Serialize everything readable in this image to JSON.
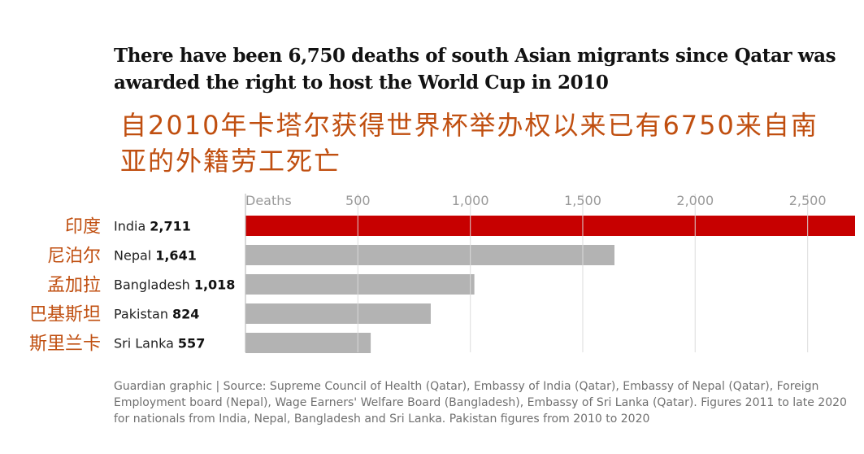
{
  "title": "There have been 6,750 deaths of south Asian migrants since Qatar was awarded the right to host the World Cup in 2010",
  "subtitle_cn": "自2010年卡塔尔获得世界杯举办权以来已有6750来自南亚的外籍劳工死亡",
  "source": "Guardian graphic | Source: Supreme Council of Health (Qatar), Embassy of India (Qatar), Embassy of Nepal (Qatar), Foreign Employment board (Nepal), Wage Earners' Welfare Board (Bangladesh), Embassy of Sri Lanka (Qatar). Figures 2011 to late 2020 for nationals from India, Nepal, Bangladesh and Sri Lanka. Pakistan figures from 2010 to 2020",
  "chart_data": {
    "type": "bar",
    "orientation": "horizontal",
    "categories": [
      "India",
      "Nepal",
      "Bangladesh",
      "Pakistan",
      "Sri Lanka"
    ],
    "categories_cn": [
      "印度",
      "尼泊尔",
      "孟加拉",
      "巴基斯坦",
      "斯里兰卡"
    ],
    "values": [
      2711,
      1641,
      1018,
      824,
      557
    ],
    "value_labels": [
      "2,711",
      "1,641",
      "1,018",
      "824",
      "557"
    ],
    "xlim": [
      0,
      2711
    ],
    "ticks": [
      0,
      500,
      1000,
      1500,
      2000,
      2500
    ],
    "tick_labels": [
      "Deaths",
      "500",
      "1,000",
      "1,500",
      "2,000",
      "2,500"
    ],
    "highlight_index": 0,
    "colors": {
      "highlight": "#c70000",
      "default": "#b3b3b3",
      "grid": "#dcdcdc"
    },
    "grid": true
  }
}
